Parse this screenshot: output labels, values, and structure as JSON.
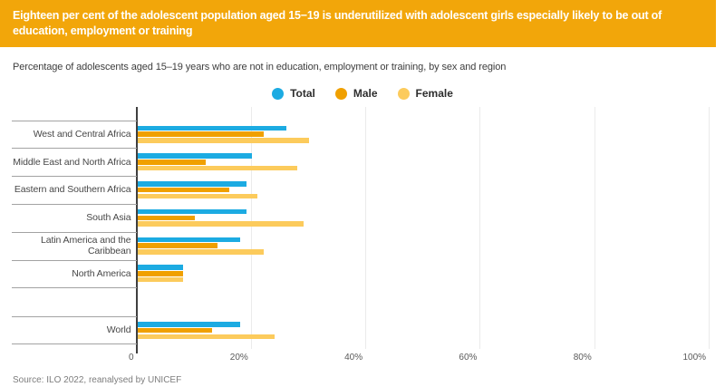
{
  "header": {
    "title": "Eighteen per cent of the adolescent population aged 15−19 is underutilized with adolescent girls especially likely to be out of education, employment or training",
    "background": "#F2A60A",
    "text_color": "#FFFFFF"
  },
  "subtitle": "Percentage of adolescents aged 15–19 years who are not in education, employment or training, by sex and region",
  "source": "Source: ILO 2022, reanalysed by UNICEF",
  "chart_data": {
    "type": "bar",
    "orientation": "horizontal",
    "title": "Percentage of adolescents aged 15–19 years who are not in education, employment or training, by sex and region",
    "categories": [
      "West and Central Africa",
      "Middle East and North Africa",
      "Eastern and Southern Africa",
      "South Asia",
      "Latin America and the Caribbean",
      "North America",
      "World"
    ],
    "series": [
      {
        "name": "Total",
        "color": "#1CABE2",
        "values": [
          26,
          20,
          19,
          19,
          18,
          8,
          18
        ]
      },
      {
        "name": "Male",
        "color": "#F0A000",
        "values": [
          22,
          12,
          16,
          10,
          14,
          8,
          13
        ]
      },
      {
        "name": "Female",
        "color": "#FCCB5C",
        "values": [
          30,
          28,
          21,
          29,
          22,
          8,
          24
        ]
      }
    ],
    "x_ticks": [
      {
        "label": "0",
        "value": 0
      },
      {
        "label": "20%",
        "value": 20
      },
      {
        "label": "40%",
        "value": 40
      },
      {
        "label": "60%",
        "value": 60
      },
      {
        "label": "80%",
        "value": 80
      },
      {
        "label": "100%",
        "value": 100
      }
    ],
    "xlim": [
      0,
      100
    ],
    "gridlines": true,
    "legend_position": "top-center",
    "separated_category": "World"
  }
}
